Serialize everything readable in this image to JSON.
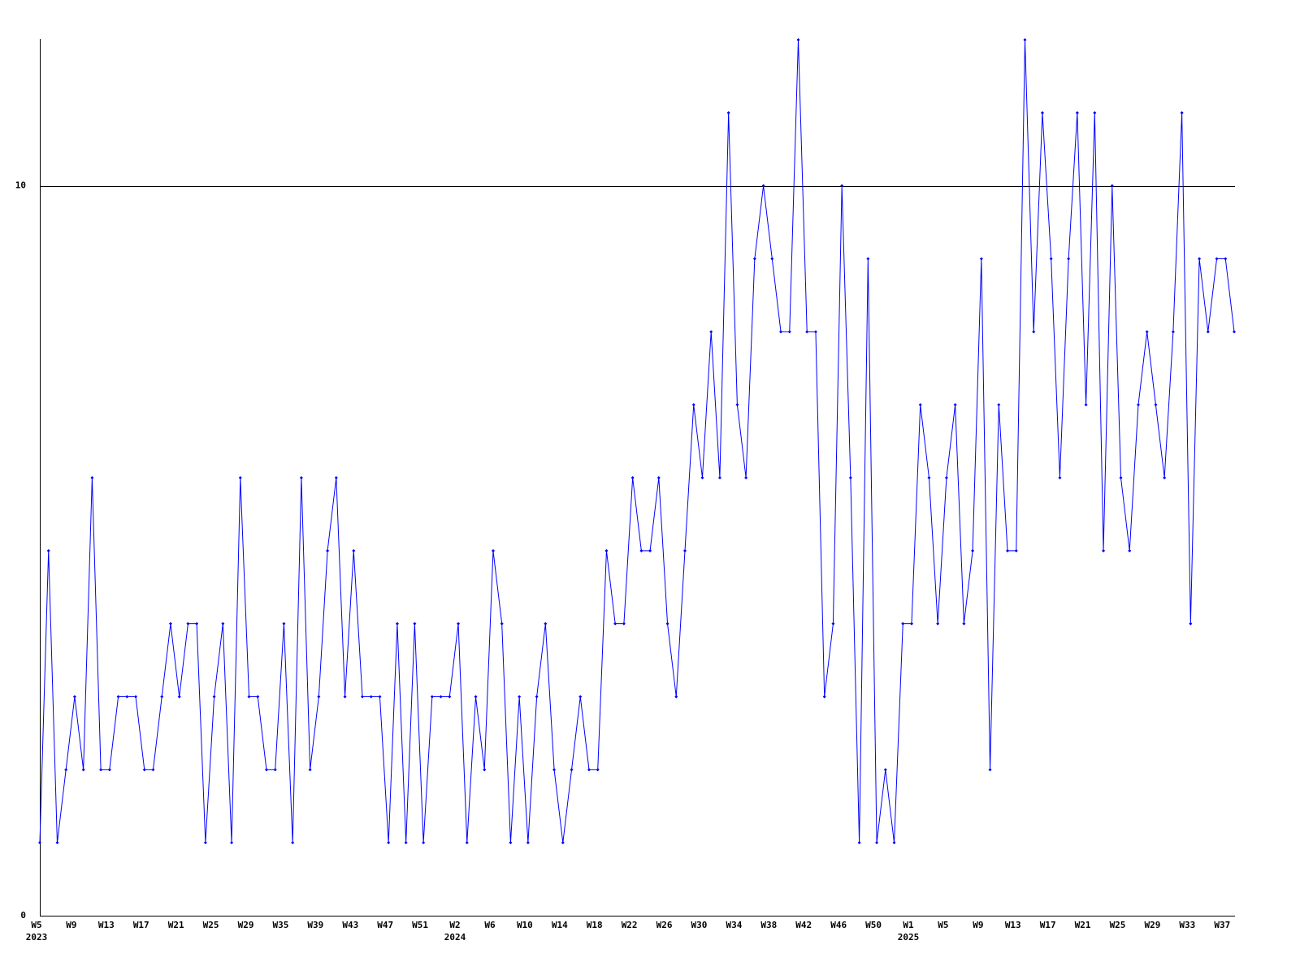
{
  "chart_data": {
    "type": "line",
    "categories": [
      "W5",
      null,
      null,
      null,
      "W9",
      null,
      null,
      null,
      "W13",
      null,
      null,
      null,
      "W17",
      null,
      null,
      null,
      "W21",
      null,
      null,
      null,
      "W25",
      null,
      null,
      null,
      "W29",
      null,
      null,
      null,
      "W35",
      null,
      null,
      null,
      "W39",
      null,
      null,
      null,
      "W43",
      null,
      null,
      null,
      "W47",
      null,
      null,
      null,
      "W51",
      null,
      null,
      null,
      "W2",
      null,
      null,
      null,
      "W6",
      null,
      null,
      null,
      "W10",
      null,
      null,
      null,
      "W14",
      null,
      null,
      null,
      "W18",
      null,
      null,
      null,
      "W22",
      null,
      null,
      null,
      "W26",
      null,
      null,
      null,
      "W30",
      null,
      null,
      null,
      "W34",
      null,
      null,
      null,
      "W38",
      null,
      null,
      null,
      "W42",
      null,
      null,
      null,
      "W46",
      null,
      null,
      null,
      "W50",
      null,
      null,
      null,
      "W1",
      null,
      null,
      null,
      "W5",
      null,
      null,
      null,
      "W9",
      null,
      null,
      null,
      "W13",
      null,
      null,
      null,
      "W17",
      null,
      null,
      null,
      "W21",
      null,
      null,
      null,
      "W25",
      null,
      null,
      null,
      "W29",
      null,
      null,
      null,
      "W33",
      null,
      null,
      null,
      "W37",
      null
    ],
    "category_years": [
      "2023",
      null,
      null,
      null,
      null,
      null,
      null,
      null,
      null,
      null,
      null,
      null,
      null,
      null,
      null,
      null,
      null,
      null,
      null,
      null,
      null,
      null,
      null,
      null,
      null,
      null,
      null,
      null,
      null,
      null,
      null,
      null,
      null,
      null,
      null,
      null,
      null,
      null,
      null,
      null,
      null,
      null,
      null,
      null,
      null,
      null,
      null,
      null,
      "2024",
      null,
      null,
      null,
      null,
      null,
      null,
      null,
      null,
      null,
      null,
      null,
      null,
      null,
      null,
      null,
      null,
      null,
      null,
      null,
      null,
      null,
      null,
      null,
      null,
      null,
      null,
      null,
      null,
      null,
      null,
      null,
      null,
      null,
      null,
      null,
      null,
      null,
      null,
      null,
      null,
      null,
      null,
      null,
      null,
      null,
      null,
      null,
      null,
      null,
      null,
      null,
      "2025",
      null,
      null,
      null,
      null,
      null,
      null,
      null,
      null,
      null,
      null,
      null,
      null,
      null,
      null,
      null,
      null,
      null,
      null,
      null,
      null,
      null,
      null,
      null,
      null,
      null,
      null,
      null,
      null,
      null,
      null,
      null,
      null,
      null,
      null,
      null,
      null,
      null
    ],
    "series": [
      {
        "color": "#0000ff",
        "values": [
          1,
          5,
          1,
          2,
          3,
          2,
          6,
          2,
          2,
          3,
          3,
          3,
          2,
          2,
          3,
          4,
          3,
          4,
          4,
          1,
          3,
          4,
          1,
          6,
          3,
          3,
          2,
          2,
          4,
          1,
          6,
          2,
          3,
          5,
          6,
          3,
          5,
          3,
          3,
          3,
          1,
          4,
          1,
          4,
          1,
          3,
          3,
          3,
          4,
          1,
          3,
          2,
          5,
          4,
          1,
          3,
          1,
          3,
          4,
          2,
          1,
          2,
          3,
          2,
          2,
          5,
          4,
          4,
          6,
          5,
          5,
          6,
          4,
          3,
          5,
          7,
          6,
          8,
          6,
          11,
          7,
          6,
          9,
          10,
          9,
          8,
          8,
          12,
          8,
          8,
          3,
          4,
          10,
          6,
          1,
          9,
          1,
          2,
          1,
          4,
          4,
          7,
          6,
          4,
          6,
          7,
          4,
          5,
          9,
          2,
          7,
          5,
          5,
          12,
          8,
          11,
          9,
          6,
          9,
          11,
          7,
          11,
          5,
          10,
          6,
          5,
          7,
          8,
          7,
          6,
          8,
          11,
          4,
          9,
          8,
          9,
          9,
          8
        ]
      }
    ],
    "ylim": [
      0,
      12
    ],
    "yticks": [
      0,
      10
    ],
    "grid": true
  }
}
